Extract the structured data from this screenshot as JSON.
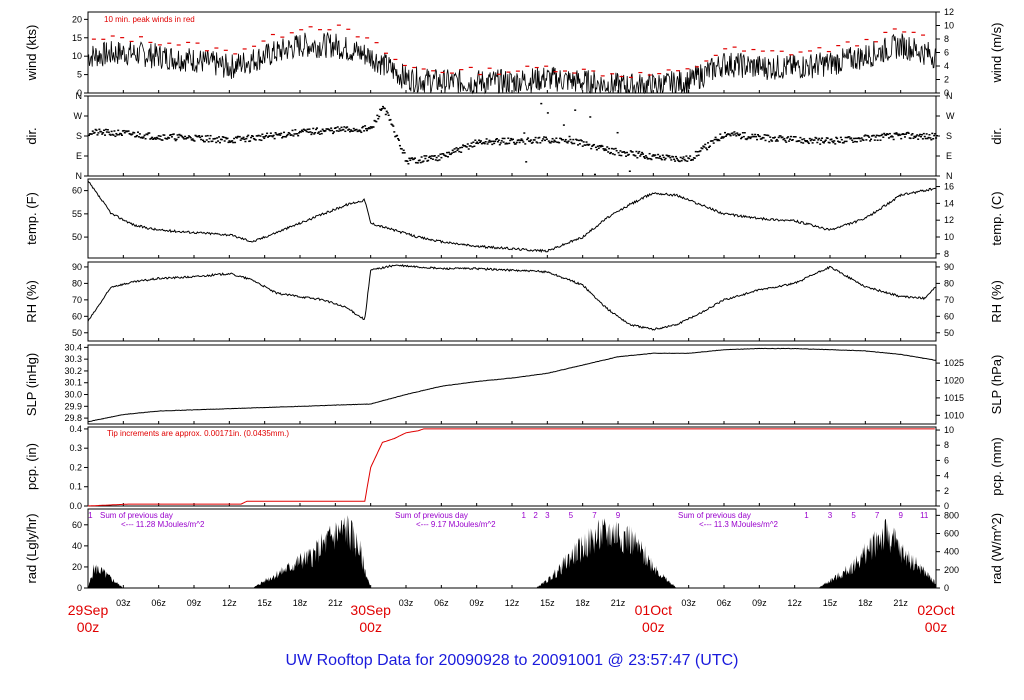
{
  "title": "UW Rooftop Data for 20090928  to  20091001 @ 23:57:47  (UTC)",
  "colors": {
    "axis": "#000000",
    "trace": "#000000",
    "red": "#e00000",
    "purple": "#9900cc",
    "title": "#1a1adc"
  },
  "chart_data": [
    {
      "type": "line",
      "id": "wind",
      "ylabel": "wind (kts)",
      "ylabel_right": "wind (m/s)",
      "ylim": [
        0,
        22
      ],
      "yticks": [
        0,
        5,
        10,
        15,
        20
      ],
      "ylim_right": [
        0,
        12
      ],
      "yticks_right": [
        0,
        2,
        4,
        6,
        8,
        10,
        12
      ],
      "annotation": "10 min. peak winds in red",
      "series": [
        {
          "role": "mean",
          "color": "#000000",
          "x": [
            0,
            3,
            6,
            9,
            12,
            15,
            18,
            21,
            24,
            27,
            30,
            33,
            36,
            39,
            42,
            45,
            48,
            51,
            54,
            57,
            60,
            63,
            66,
            69,
            72
          ],
          "values": [
            10,
            11,
            10,
            9,
            7,
            10,
            13,
            13,
            10,
            4,
            3,
            3,
            3,
            4,
            3,
            2,
            2,
            3,
            8,
            7,
            7,
            8,
            10,
            13,
            10
          ]
        },
        {
          "role": "peak",
          "color": "#e00000",
          "x": [
            0,
            3,
            6,
            9,
            12,
            15,
            18,
            21,
            24,
            27,
            30,
            33,
            36,
            39,
            42,
            45,
            48,
            51,
            54,
            57,
            60,
            63,
            66,
            69,
            72
          ],
          "values": [
            14,
            15,
            14,
            13,
            11,
            14,
            18,
            18,
            14,
            7,
            6,
            6,
            6,
            7,
            6,
            5,
            5,
            6,
            12,
            11,
            11,
            12,
            14,
            17,
            14
          ]
        }
      ]
    },
    {
      "type": "scatter",
      "id": "dir",
      "ylabel": "dir.",
      "ylabel_right": "dir.",
      "ylim": [
        0,
        360
      ],
      "ytick_labels": [
        "N",
        "E",
        "S",
        "W",
        "N"
      ],
      "series": [
        {
          "color": "#000000",
          "x": [
            0,
            3,
            6,
            9,
            12,
            15,
            18,
            21,
            24,
            25,
            27,
            30,
            33,
            36,
            39,
            42,
            45,
            48,
            51,
            54,
            57,
            60,
            63,
            66,
            69,
            72
          ],
          "values": [
            200,
            195,
            180,
            175,
            165,
            180,
            200,
            210,
            215,
            320,
            70,
            90,
            155,
            160,
            165,
            150,
            110,
            90,
            80,
            195,
            175,
            165,
            160,
            175,
            185,
            180
          ]
        }
      ]
    },
    {
      "type": "line",
      "id": "temp",
      "ylabel": "temp. (F)",
      "ylabel_right": "temp. (C)",
      "ylim": [
        45.5,
        62.5
      ],
      "yticks": [
        50,
        55,
        60
      ],
      "ylim_right": [
        7.5,
        16.9
      ],
      "yticks_right": [
        8,
        10,
        12,
        14,
        16
      ],
      "series": [
        {
          "color": "#000000",
          "x": [
            0,
            2,
            4,
            6,
            9,
            12,
            14,
            16,
            18,
            20,
            22,
            23.5,
            24,
            26,
            28,
            30,
            33,
            36,
            39,
            42,
            44,
            46,
            48,
            50,
            52,
            54,
            57,
            60,
            63,
            66,
            69,
            72
          ],
          "values": [
            62,
            55,
            52.5,
            51.5,
            51,
            50.5,
            49,
            51,
            53,
            55,
            57,
            58,
            53,
            51.5,
            50,
            49,
            48,
            47.5,
            47,
            50,
            54,
            57,
            59.5,
            59,
            57,
            55,
            54,
            53.5,
            51.5,
            54,
            59,
            60.5
          ]
        }
      ]
    },
    {
      "type": "line",
      "id": "rh",
      "ylabel": "RH (%)",
      "ylabel_right": "RH (%)",
      "ylim": [
        45,
        93
      ],
      "yticks": [
        50,
        60,
        70,
        80,
        90
      ],
      "series": [
        {
          "color": "#000000",
          "x": [
            0,
            2,
            4,
            6,
            9,
            12,
            14,
            16,
            18,
            20,
            22,
            23.5,
            24,
            26,
            28,
            30,
            33,
            36,
            39,
            42,
            44,
            46,
            48,
            50,
            52,
            54,
            57,
            60,
            63,
            66,
            69,
            71,
            72
          ],
          "values": [
            57,
            78,
            81,
            83,
            84,
            86,
            82,
            74,
            72,
            70,
            65,
            58,
            88,
            91,
            90,
            89,
            89,
            88,
            87,
            79,
            65,
            55,
            52,
            55,
            62,
            70,
            76,
            80,
            90,
            78,
            72,
            71,
            78
          ]
        }
      ]
    },
    {
      "type": "line",
      "id": "slp",
      "ylabel": "SLP (inHg)",
      "ylabel_right": "SLP (hPa)",
      "ylim": [
        29.75,
        30.42
      ],
      "yticks": [
        29.8,
        29.9,
        30.0,
        30.1,
        30.2,
        30.3,
        30.4
      ],
      "ytick_labels": [
        "29.8",
        "29.9",
        "30.0",
        "30.1",
        "30.2",
        "30.3",
        "30.4"
      ],
      "ylim_right": [
        1007.5,
        1030.2
      ],
      "yticks_right": [
        1010,
        1015,
        1020,
        1025
      ],
      "series": [
        {
          "color": "#000000",
          "x": [
            0,
            3,
            6,
            9,
            12,
            15,
            18,
            21,
            24,
            27,
            30,
            33,
            36,
            39,
            42,
            45,
            48,
            51,
            54,
            57,
            60,
            63,
            66,
            69,
            72
          ],
          "values": [
            29.77,
            29.83,
            29.86,
            29.87,
            29.88,
            29.89,
            29.9,
            29.91,
            29.92,
            30.0,
            30.07,
            30.11,
            30.14,
            30.18,
            30.25,
            30.32,
            30.35,
            30.35,
            30.38,
            30.39,
            30.39,
            30.38,
            30.37,
            30.34,
            30.29
          ]
        }
      ]
    },
    {
      "type": "line",
      "id": "pcp",
      "ylabel": "pcp. (in)",
      "ylabel_right": "pcp. (mm)",
      "ylim": [
        0,
        0.41
      ],
      "yticks": [
        0.0,
        0.1,
        0.2,
        0.3,
        0.4
      ],
      "ytick_labels": [
        "0.0",
        "0.1",
        "0.2",
        "0.3",
        "0.4"
      ],
      "ylim_right": [
        0,
        10.4
      ],
      "yticks_right": [
        0,
        2,
        4,
        6,
        8,
        10
      ],
      "annotation": "Tip increments are approx. 0.00171in. (0.0435mm.)",
      "series": [
        {
          "color": "#e00000",
          "x": [
            0,
            3.5,
            13,
            13.5,
            23.5,
            24,
            25,
            26,
            27,
            28,
            28.5,
            72
          ],
          "values": [
            0,
            0.01,
            0.01,
            0.025,
            0.025,
            0.2,
            0.33,
            0.35,
            0.38,
            0.39,
            0.4,
            0.4
          ]
        }
      ]
    },
    {
      "type": "area",
      "id": "rad",
      "ylabel": "rad (Lgly/hr)",
      "ylabel_right": "rad (W/m^2)",
      "ylim": [
        0,
        75
      ],
      "yticks": [
        0,
        20,
        40,
        60
      ],
      "ylim_right": [
        0,
        870
      ],
      "yticks_right": [
        0,
        200,
        400,
        600,
        800
      ],
      "series": [
        {
          "color": "#000000",
          "x": [
            0,
            0.5,
            1,
            2,
            3,
            14,
            15,
            16,
            17,
            18,
            19,
            20,
            21,
            22,
            23,
            23.5,
            24,
            38,
            39,
            40,
            41,
            42,
            43,
            44,
            45,
            46,
            47,
            48,
            49,
            50,
            62,
            63,
            64,
            65,
            66,
            67,
            68,
            69,
            70,
            71,
            72
          ],
          "values": [
            0,
            22,
            20,
            10,
            0,
            0,
            8,
            15,
            22,
            30,
            35,
            48,
            60,
            65,
            45,
            20,
            0,
            0,
            8,
            20,
            35,
            45,
            55,
            60,
            62,
            55,
            40,
            25,
            10,
            0,
            0,
            8,
            15,
            25,
            38,
            55,
            60,
            40,
            30,
            18,
            5
          ]
        }
      ],
      "day_labels": [
        {
          "day": "1",
          "hours": [
            "1"
          ]
        },
        {
          "day": "2",
          "hours": [
            "1",
            "2",
            "3",
            "5",
            "7",
            "9"
          ],
          "text": "Sum of previous day",
          "total": "<--- 11.28 MJoules/m^2"
        },
        {
          "day": "3",
          "hours": [
            "1",
            "3",
            "5",
            "7",
            "9",
            "11"
          ],
          "text": "Sum of previous day",
          "total": "<--- 9.17 MJoules/m^2"
        },
        {
          "day": "4",
          "hours": [
            "1",
            "3",
            "5",
            "7"
          ],
          "text": "Sum of previous day",
          "total": "<--- 11.3 MJoules/m^2"
        }
      ]
    }
  ],
  "xaxis": {
    "hours_range": [
      0,
      72
    ],
    "minor_labels": [
      "03z",
      "06z",
      "09z",
      "12z",
      "15z",
      "18z",
      "21z"
    ],
    "major_labels": [
      {
        "date": "29Sep",
        "time": "00z"
      },
      {
        "date": "30Sep",
        "time": "00z"
      },
      {
        "date": "01Oct",
        "time": "00z"
      },
      {
        "date": "02Oct",
        "time": "00z"
      }
    ]
  }
}
